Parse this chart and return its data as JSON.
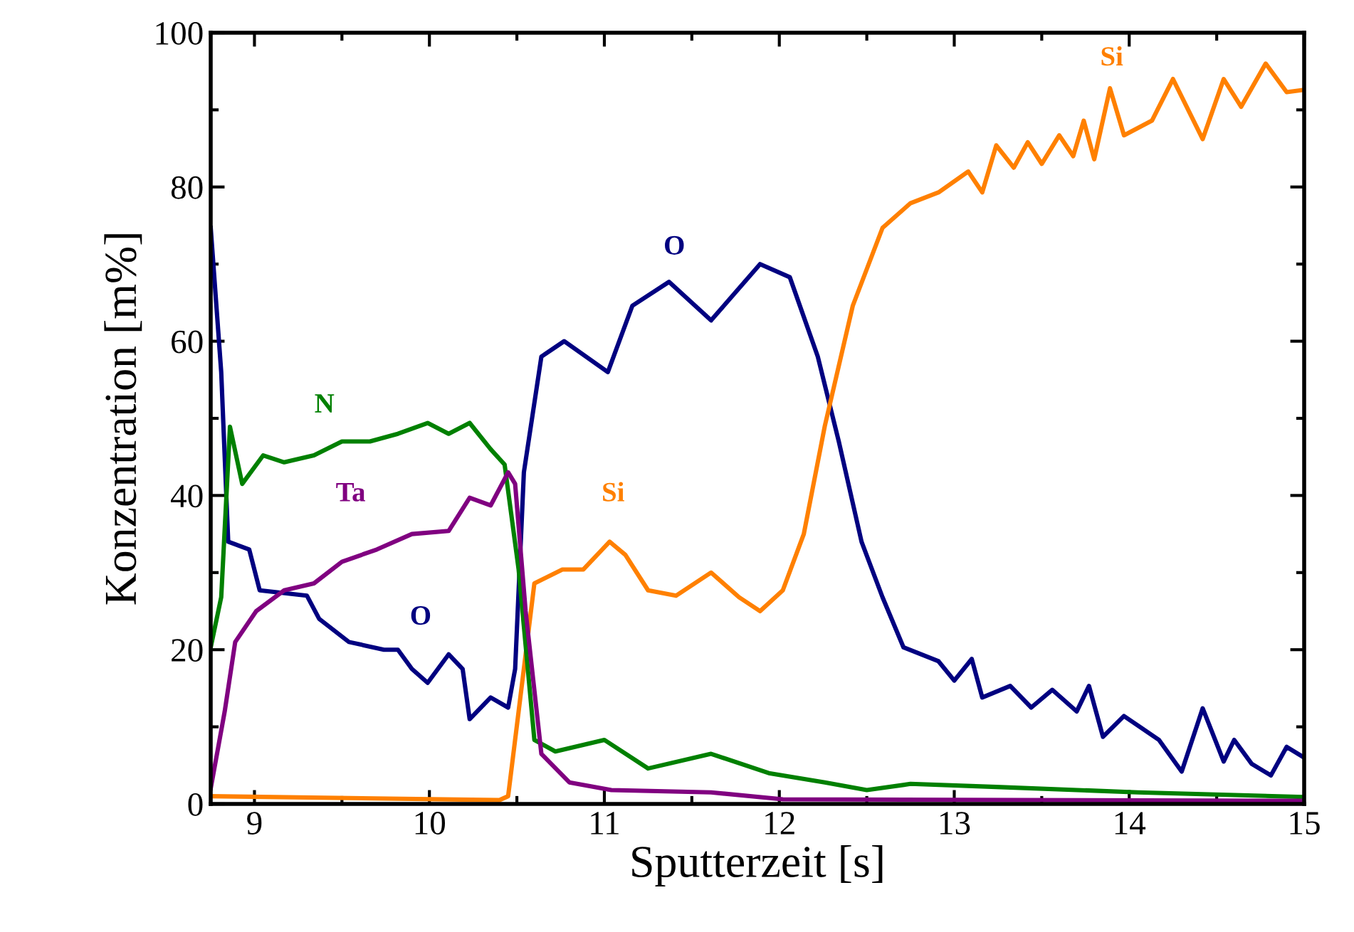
{
  "chart_data": {
    "type": "line",
    "xlabel": "Sputterzeit [s]",
    "ylabel": "Konzentration [m%]",
    "xlim": [
      8.75,
      15
    ],
    "ylim": [
      0,
      100
    ],
    "xticks": [
      9,
      10,
      11,
      12,
      13,
      14,
      15
    ],
    "yticks": [
      0,
      20,
      40,
      60,
      80,
      100
    ],
    "grid": false,
    "legend": false,
    "series": [
      {
        "name": "O",
        "color": "#000080",
        "x": [
          8.75,
          8.81,
          8.85,
          8.97,
          9.03,
          9.3,
          9.37,
          9.54,
          9.74,
          9.82,
          9.9,
          9.99,
          10.11,
          10.19,
          10.23,
          10.35,
          10.45,
          10.49,
          10.54,
          10.64,
          10.77,
          11.02,
          11.16,
          11.37,
          11.61,
          11.89,
          12.06,
          12.22,
          12.34,
          12.47,
          12.59,
          12.71,
          12.91,
          13.0,
          13.1,
          13.16,
          13.32,
          13.44,
          13.56,
          13.7,
          13.77,
          13.85,
          13.97,
          14.17,
          14.3,
          14.42,
          14.54,
          14.6,
          14.7,
          14.81,
          14.9,
          15
        ],
        "values": [
          74.7,
          56,
          34,
          33,
          27.7,
          27,
          24,
          21,
          20,
          20,
          17.5,
          15.7,
          19.4,
          17.5,
          11,
          13.8,
          12.5,
          17.5,
          43,
          58,
          60,
          56,
          64.6,
          67.7,
          62.7,
          70,
          68.3,
          58,
          47,
          34,
          26.8,
          20.3,
          18.5,
          16,
          18.8,
          13.8,
          15.3,
          12.5,
          14.8,
          12,
          15.3,
          8.7,
          11.4,
          8.3,
          4.2,
          12.4,
          5.5,
          8.3,
          5.2,
          3.7,
          7.4,
          6
        ]
      },
      {
        "name": "Si",
        "color": "#ff8000",
        "x": [
          8.75,
          10.4,
          10.45,
          10.51,
          10.6,
          10.76,
          10.88,
          11.03,
          11.12,
          11.25,
          11.41,
          11.61,
          11.77,
          11.89,
          12.02,
          12.14,
          12.26,
          12.42,
          12.59,
          12.75,
          12.91,
          13.08,
          13.16,
          13.24,
          13.34,
          13.42,
          13.5,
          13.6,
          13.68,
          13.74,
          13.8,
          13.89,
          13.97,
          14.13,
          14.25,
          14.42,
          14.54,
          14.64,
          14.78,
          14.9,
          15
        ],
        "values": [
          1,
          0.5,
          1,
          12,
          28.6,
          30.4,
          30.4,
          34,
          32.3,
          27.7,
          27,
          30,
          26.8,
          25,
          27.7,
          35,
          49,
          64.6,
          74.7,
          77.9,
          79.3,
          82,
          79.3,
          85.4,
          82.5,
          85.8,
          83,
          86.7,
          84,
          88.6,
          83.6,
          92.8,
          86.7,
          88.6,
          94,
          86.2,
          94,
          90.4,
          96,
          92.3,
          92.6
        ]
      },
      {
        "name": "N",
        "color": "#008000",
        "x": [
          8.75,
          8.81,
          8.86,
          8.93,
          9.05,
          9.17,
          9.34,
          9.5,
          9.66,
          9.82,
          9.99,
          10.11,
          10.23,
          10.35,
          10.43,
          10.51,
          10.6,
          10.72,
          11.0,
          11.25,
          11.61,
          11.94,
          12.26,
          12.5,
          12.75,
          13.24,
          14.05,
          15
        ],
        "values": [
          20.3,
          26.8,
          48.9,
          41.5,
          45.2,
          44.3,
          45.2,
          47,
          47,
          48,
          49.4,
          48,
          49.4,
          46,
          44,
          30.4,
          8.3,
          6.8,
          8.3,
          4.6,
          6.5,
          4,
          2.8,
          1.8,
          2.6,
          2.2,
          1.5,
          0.9
        ]
      },
      {
        "name": "Ta",
        "color": "#800080",
        "x": [
          8.75,
          8.83,
          8.89,
          9.01,
          9.17,
          9.34,
          9.5,
          9.7,
          9.9,
          10.11,
          10.23,
          10.35,
          10.45,
          10.49,
          10.55,
          10.64,
          10.8,
          11.04,
          11.61,
          12.02,
          15
        ],
        "values": [
          2,
          12,
          21,
          25,
          27.7,
          28.6,
          31.4,
          33,
          35,
          35.4,
          39.7,
          38.7,
          43,
          41.5,
          25,
          6.5,
          2.8,
          1.8,
          1.5,
          0.6,
          0.4
        ]
      }
    ]
  }
}
